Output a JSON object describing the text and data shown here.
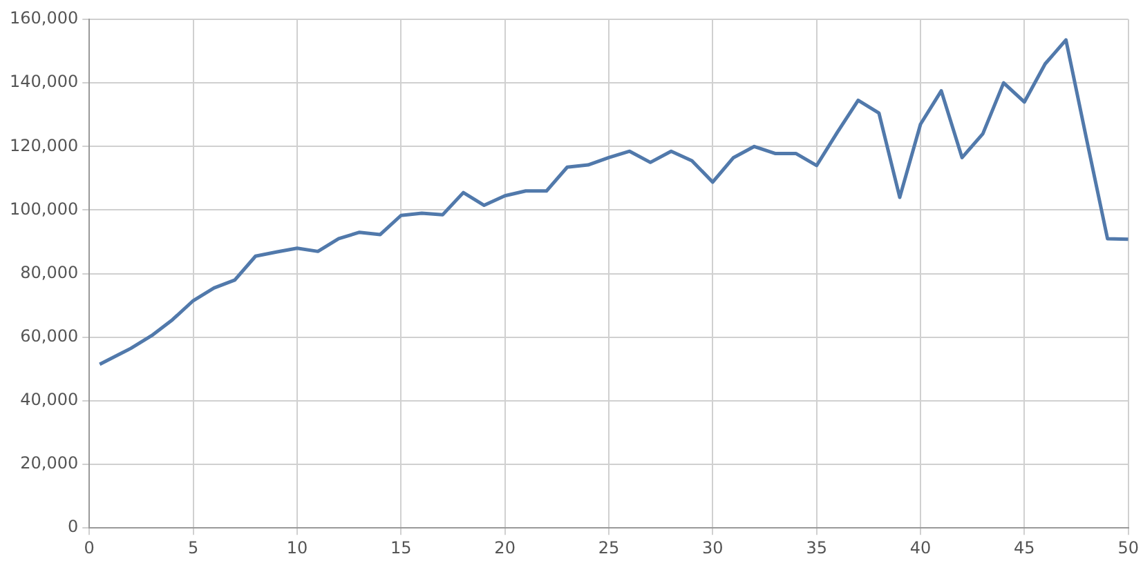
{
  "chart_data": {
    "type": "line",
    "x": [
      0.5,
      2,
      3,
      4,
      5,
      6,
      7,
      8,
      9,
      10,
      11,
      12,
      13,
      14,
      15,
      16,
      17,
      18,
      19,
      20,
      21,
      22,
      23,
      24,
      25,
      26,
      27,
      28,
      29,
      30,
      31,
      32,
      33,
      34,
      35,
      36,
      37,
      38,
      39,
      40,
      41,
      42,
      43,
      44,
      45,
      46,
      47,
      48,
      49,
      50
    ],
    "series": [
      {
        "color": "#5179ab",
        "values": [
          51500,
          56500,
          60500,
          65500,
          71500,
          75500,
          78000,
          85500,
          86800,
          88000,
          87000,
          91000,
          93000,
          92300,
          98300,
          99000,
          98500,
          105500,
          101500,
          104500,
          106000,
          106000,
          113500,
          114200,
          116500,
          118500,
          115000,
          118500,
          115500,
          108800,
          116500,
          120000,
          117800,
          117800,
          114000,
          124500,
          134500,
          130500,
          104000,
          127000,
          137500,
          116500,
          124000,
          140000,
          134000,
          146000,
          153500,
          122000,
          91000,
          90800
        ]
      }
    ],
    "xlim": [
      0,
      50
    ],
    "xticks": [
      0,
      5,
      10,
      15,
      20,
      25,
      30,
      35,
      40,
      45,
      50
    ],
    "ylim": [
      0,
      160000
    ],
    "yticks": [
      0,
      {
        "value": 20000,
        "label": "20,000"
      },
      {
        "value": 40000,
        "label": "40,000"
      },
      {
        "value": 60000,
        "label": "60,000"
      },
      {
        "value": 80000,
        "label": "80,000"
      },
      {
        "value": 100000,
        "label": "100,000"
      },
      {
        "value": 120000,
        "label": "120,000"
      },
      {
        "value": 140000,
        "label": "140,000"
      },
      {
        "value": 160000,
        "label": "160,000"
      }
    ],
    "grid": true,
    "legend": false,
    "marker": "none",
    "line_style": "solid"
  }
}
